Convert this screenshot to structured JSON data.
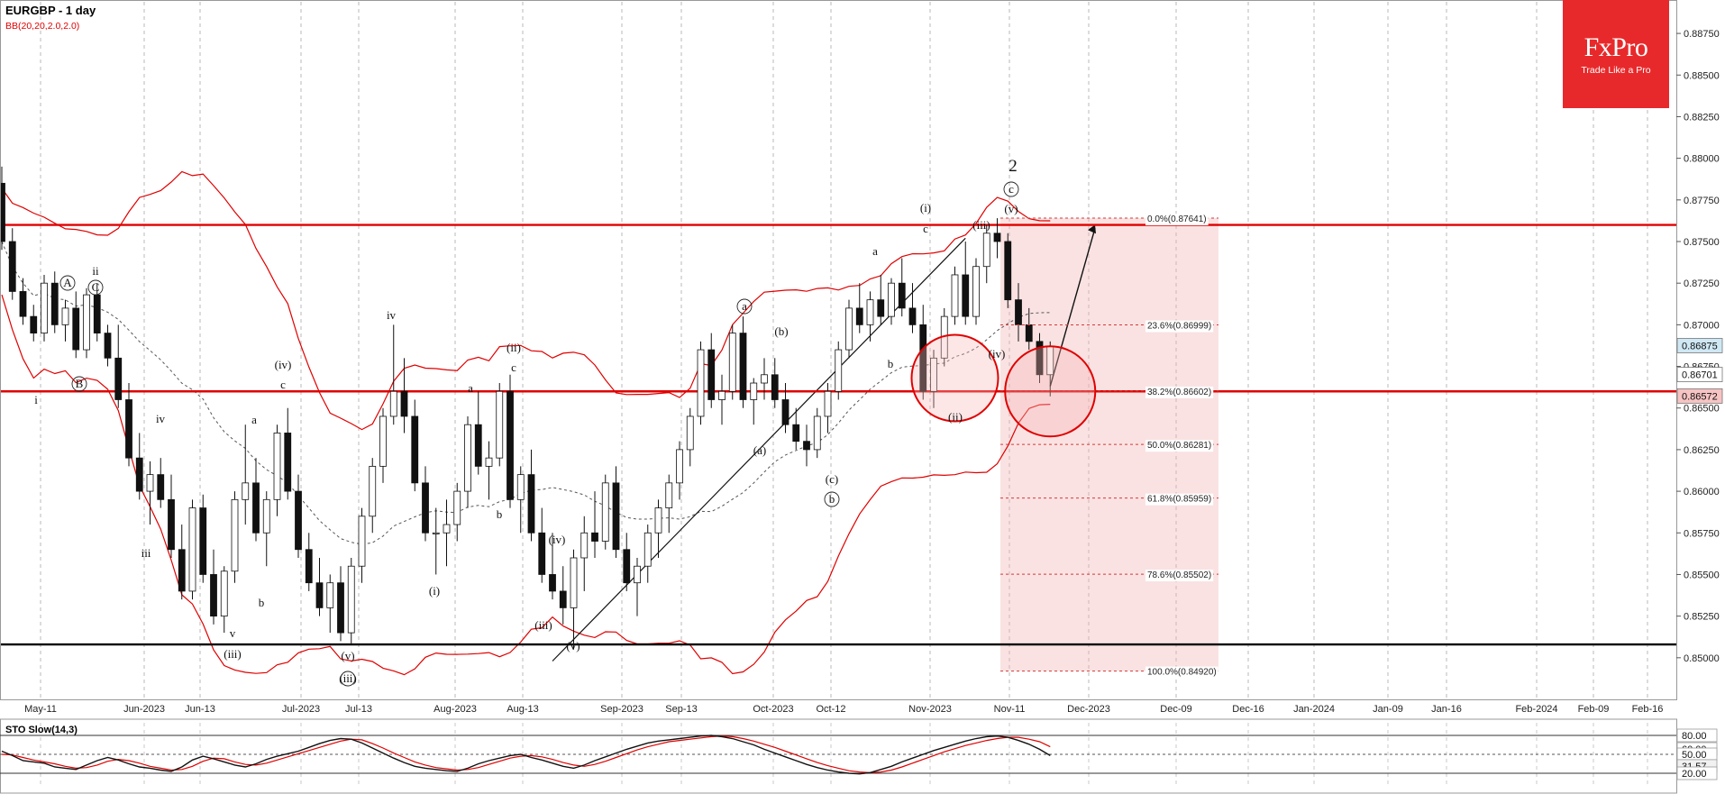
{
  "header": {
    "symbol_title": "EURGBP - 1 day",
    "indicator": "BB(20,20,2.0,2.0)"
  },
  "logo": {
    "name": "FxPro",
    "tagline": "Trade Like a Pro"
  },
  "oscillator": {
    "label": "STO Slow(14,3)",
    "levels": [
      "80.00",
      "60.00",
      "50.00",
      "31.57",
      "20.00"
    ]
  },
  "chart_data": {
    "type": "candlestick",
    "symbol": "EURGBP",
    "timeframe": "1 day",
    "x_tick_labels": [
      "May-11",
      "Jun-2023",
      "Jun-13",
      "Jul-2023",
      "Jul-13",
      "Aug-2023",
      "Aug-13",
      "Sep-2023",
      "Sep-13",
      "Oct-2023",
      "Oct-12",
      "Nov-2023",
      "Nov-11",
      "Dec-2023",
      "Dec-09",
      "Dec-16",
      "Jan-2024",
      "Jan-09",
      "Jan-16",
      "Feb-2024",
      "Feb-09",
      "Feb-16"
    ],
    "y_tick_labels": [
      "0.88750",
      "0.88500",
      "0.88250",
      "0.88000",
      "0.87750",
      "0.87500",
      "0.87250",
      "0.87000",
      "0.86750",
      "0.86500",
      "0.86250",
      "0.86000",
      "0.85750",
      "0.85500",
      "0.85250",
      "0.85000"
    ],
    "ylim": [
      0.8475,
      0.8894
    ],
    "price_tags": [
      {
        "label": "0.86875",
        "value": 0.86875,
        "color": "#cfe8f4"
      },
      {
        "label": "0.86701",
        "value": 0.86701,
        "color": "#ffffff"
      },
      {
        "label": "0.86572",
        "value": 0.86572,
        "color": "#f7c3c3"
      }
    ],
    "horizontal_lines": [
      {
        "value": 0.876,
        "color": "#e00000"
      },
      {
        "value": 0.866,
        "color": "#e00000"
      },
      {
        "value": 0.8508,
        "color": "#000000"
      }
    ],
    "fibonacci": [
      {
        "label": "0.0%(0.87641)",
        "value": 0.87641
      },
      {
        "label": "23.6%(0.86999)",
        "value": 0.86999
      },
      {
        "label": "38.2%(0.86602)",
        "value": 0.86602
      },
      {
        "label": "50.0%(0.86281)",
        "value": 0.86281
      },
      {
        "label": "61.8%(0.85959)",
        "value": 0.85959
      },
      {
        "label": "78.6%(0.85502)",
        "value": 0.85502
      },
      {
        "label": "100.0%(0.84920)",
        "value": 0.8492
      }
    ],
    "candles": [
      [
        0.8785,
        0.8795,
        0.8745,
        0.875
      ],
      [
        0.875,
        0.8758,
        0.8715,
        0.872
      ],
      [
        0.872,
        0.8728,
        0.87,
        0.8705
      ],
      [
        0.8705,
        0.8712,
        0.869,
        0.8695
      ],
      [
        0.8695,
        0.873,
        0.869,
        0.8725
      ],
      [
        0.8725,
        0.8732,
        0.8695,
        0.87
      ],
      [
        0.87,
        0.8715,
        0.869,
        0.871
      ],
      [
        0.871,
        0.872,
        0.868,
        0.8685
      ],
      [
        0.8685,
        0.8722,
        0.868,
        0.8718
      ],
      [
        0.8718,
        0.8725,
        0.869,
        0.8695
      ],
      [
        0.8695,
        0.87,
        0.8675,
        0.868
      ],
      [
        0.868,
        0.87,
        0.865,
        0.8655
      ],
      [
        0.8655,
        0.8665,
        0.8615,
        0.862
      ],
      [
        0.862,
        0.8635,
        0.8595,
        0.86
      ],
      [
        0.86,
        0.8618,
        0.858,
        0.861
      ],
      [
        0.861,
        0.862,
        0.859,
        0.8595
      ],
      [
        0.8595,
        0.861,
        0.856,
        0.8565
      ],
      [
        0.8565,
        0.858,
        0.8535,
        0.854
      ],
      [
        0.854,
        0.8595,
        0.8535,
        0.859
      ],
      [
        0.859,
        0.8598,
        0.8545,
        0.855
      ],
      [
        0.855,
        0.8565,
        0.852,
        0.8525
      ],
      [
        0.8525,
        0.8555,
        0.8515,
        0.8552
      ],
      [
        0.8552,
        0.86,
        0.8545,
        0.8595
      ],
      [
        0.8595,
        0.864,
        0.858,
        0.8605
      ],
      [
        0.8605,
        0.862,
        0.857,
        0.8575
      ],
      [
        0.8575,
        0.86,
        0.8555,
        0.8595
      ],
      [
        0.8595,
        0.864,
        0.8585,
        0.8635
      ],
      [
        0.8635,
        0.865,
        0.8595,
        0.86
      ],
      [
        0.86,
        0.861,
        0.856,
        0.8565
      ],
      [
        0.8565,
        0.8575,
        0.854,
        0.8545
      ],
      [
        0.8545,
        0.856,
        0.8525,
        0.853
      ],
      [
        0.853,
        0.855,
        0.8515,
        0.8545
      ],
      [
        0.8545,
        0.8555,
        0.851,
        0.8515
      ],
      [
        0.8515,
        0.856,
        0.8508,
        0.8555
      ],
      [
        0.8555,
        0.859,
        0.8545,
        0.8585
      ],
      [
        0.8585,
        0.862,
        0.8575,
        0.8615
      ],
      [
        0.8615,
        0.865,
        0.8605,
        0.8645
      ],
      [
        0.8645,
        0.87,
        0.864,
        0.866
      ],
      [
        0.866,
        0.868,
        0.8635,
        0.8645
      ],
      [
        0.8645,
        0.8655,
        0.86,
        0.8605
      ],
      [
        0.8605,
        0.8615,
        0.857,
        0.8575
      ],
      [
        0.8575,
        0.859,
        0.855,
        0.8575
      ],
      [
        0.8575,
        0.8595,
        0.8555,
        0.858
      ],
      [
        0.858,
        0.8605,
        0.857,
        0.86
      ],
      [
        0.86,
        0.8645,
        0.859,
        0.864
      ],
      [
        0.864,
        0.866,
        0.861,
        0.8615
      ],
      [
        0.8615,
        0.863,
        0.8595,
        0.862
      ],
      [
        0.862,
        0.8665,
        0.8615,
        0.866
      ],
      [
        0.866,
        0.867,
        0.859,
        0.8595
      ],
      [
        0.8595,
        0.8615,
        0.8575,
        0.861
      ],
      [
        0.861,
        0.8625,
        0.857,
        0.8575
      ],
      [
        0.8575,
        0.859,
        0.8545,
        0.855
      ],
      [
        0.855,
        0.8575,
        0.8535,
        0.854
      ],
      [
        0.854,
        0.8555,
        0.852,
        0.853
      ],
      [
        0.853,
        0.8565,
        0.8505,
        0.856
      ],
      [
        0.856,
        0.8585,
        0.854,
        0.8575
      ],
      [
        0.8575,
        0.86,
        0.856,
        0.857
      ],
      [
        0.857,
        0.861,
        0.8565,
        0.8605
      ],
      [
        0.8605,
        0.8615,
        0.856,
        0.8565
      ],
      [
        0.8565,
        0.8575,
        0.854,
        0.8545
      ],
      [
        0.8545,
        0.856,
        0.8525,
        0.8555
      ],
      [
        0.8555,
        0.858,
        0.8545,
        0.8575
      ],
      [
        0.8575,
        0.8595,
        0.856,
        0.859
      ],
      [
        0.859,
        0.861,
        0.8575,
        0.8605
      ],
      [
        0.8605,
        0.863,
        0.8595,
        0.8625
      ],
      [
        0.8625,
        0.865,
        0.8615,
        0.8645
      ],
      [
        0.8645,
        0.869,
        0.864,
        0.8685
      ],
      [
        0.8685,
        0.8695,
        0.865,
        0.8655
      ],
      [
        0.8655,
        0.867,
        0.864,
        0.866
      ],
      [
        0.866,
        0.87,
        0.8655,
        0.8695
      ],
      [
        0.8695,
        0.8705,
        0.865,
        0.8655
      ],
      [
        0.8655,
        0.8668,
        0.864,
        0.8665
      ],
      [
        0.8665,
        0.868,
        0.8655,
        0.867
      ],
      [
        0.867,
        0.868,
        0.865,
        0.8655
      ],
      [
        0.8655,
        0.8665,
        0.8635,
        0.864
      ],
      [
        0.864,
        0.865,
        0.8625,
        0.863
      ],
      [
        0.863,
        0.864,
        0.8615,
        0.8625
      ],
      [
        0.8625,
        0.865,
        0.862,
        0.8645
      ],
      [
        0.8645,
        0.8665,
        0.8635,
        0.866
      ],
      [
        0.866,
        0.869,
        0.8655,
        0.8685
      ],
      [
        0.8685,
        0.8715,
        0.868,
        0.871
      ],
      [
        0.871,
        0.8725,
        0.8695,
        0.87
      ],
      [
        0.87,
        0.872,
        0.869,
        0.8715
      ],
      [
        0.8715,
        0.873,
        0.87,
        0.8705
      ],
      [
        0.8705,
        0.8728,
        0.87,
        0.8725
      ],
      [
        0.8725,
        0.874,
        0.8705,
        0.871
      ],
      [
        0.871,
        0.8725,
        0.8695,
        0.87
      ],
      [
        0.87,
        0.8712,
        0.8655,
        0.866
      ],
      [
        0.866,
        0.8685,
        0.865,
        0.868
      ],
      [
        0.868,
        0.871,
        0.8675,
        0.8705
      ],
      [
        0.8705,
        0.8735,
        0.87,
        0.873
      ],
      [
        0.873,
        0.875,
        0.87,
        0.8705
      ],
      [
        0.8705,
        0.874,
        0.87,
        0.8735
      ],
      [
        0.8735,
        0.876,
        0.8725,
        0.8755
      ],
      [
        0.8755,
        0.8764,
        0.874,
        0.875
      ],
      [
        0.875,
        0.8755,
        0.871,
        0.8715
      ],
      [
        0.8715,
        0.8725,
        0.869,
        0.87
      ],
      [
        0.87,
        0.871,
        0.8685,
        0.869
      ],
      [
        0.869,
        0.8695,
        0.8665,
        0.867
      ],
      [
        0.867,
        0.869,
        0.8657,
        0.8687
      ]
    ],
    "bollinger_bands": {
      "upper_color": "#e00000",
      "lower_color": "#e00000",
      "middle_color": "#555555"
    },
    "wave_labels": [
      "i",
      "ii",
      "iii",
      "iv",
      "v",
      "a",
      "b",
      "c",
      "A",
      "B",
      "C",
      "(i)",
      "(ii)",
      "(iii)",
      "(iv)",
      "(v)",
      "(a)",
      "(b)",
      "(c)",
      "2"
    ],
    "stochastic": {
      "k": [
        55,
        48,
        40,
        38,
        36,
        30,
        28,
        26,
        33,
        40,
        45,
        41,
        35,
        30,
        28,
        25,
        23,
        30,
        41,
        47,
        43,
        38,
        33,
        30,
        35,
        42,
        47,
        51,
        55,
        61,
        67,
        72,
        75,
        74,
        68,
        60,
        52,
        44,
        37,
        31,
        28,
        26,
        24,
        23,
        28,
        35,
        40,
        44,
        48,
        50,
        45,
        41,
        36,
        31,
        28,
        33,
        40,
        46,
        52,
        58,
        63,
        68,
        71,
        73,
        75,
        77,
        79,
        80,
        78,
        75,
        70,
        65,
        58,
        52,
        46,
        40,
        34,
        29,
        25,
        22,
        20,
        19,
        21,
        26,
        31,
        38,
        44,
        50,
        56,
        61,
        66,
        71,
        75,
        78,
        79,
        77,
        72,
        66,
        58,
        48
      ],
      "d": [
        50,
        49,
        45,
        41,
        38,
        35,
        31,
        28,
        29,
        33,
        39,
        42,
        40,
        36,
        31,
        28,
        25,
        26,
        31,
        39,
        44,
        43,
        38,
        34,
        33,
        36,
        41,
        46,
        51,
        56,
        61,
        66,
        71,
        74,
        73,
        67,
        60,
        52,
        45,
        38,
        33,
        29,
        27,
        25,
        26,
        29,
        34,
        39,
        44,
        47,
        48,
        46,
        42,
        37,
        33,
        31,
        34,
        39,
        45,
        51,
        57,
        62,
        66,
        70,
        72,
        74,
        76,
        78,
        79,
        78,
        75,
        71,
        66,
        61,
        55,
        49,
        43,
        37,
        32,
        28,
        24,
        22,
        21,
        22,
        25,
        30,
        36,
        42,
        48,
        54,
        59,
        64,
        68,
        72,
        75,
        77,
        77,
        74,
        70,
        62
      ]
    }
  }
}
